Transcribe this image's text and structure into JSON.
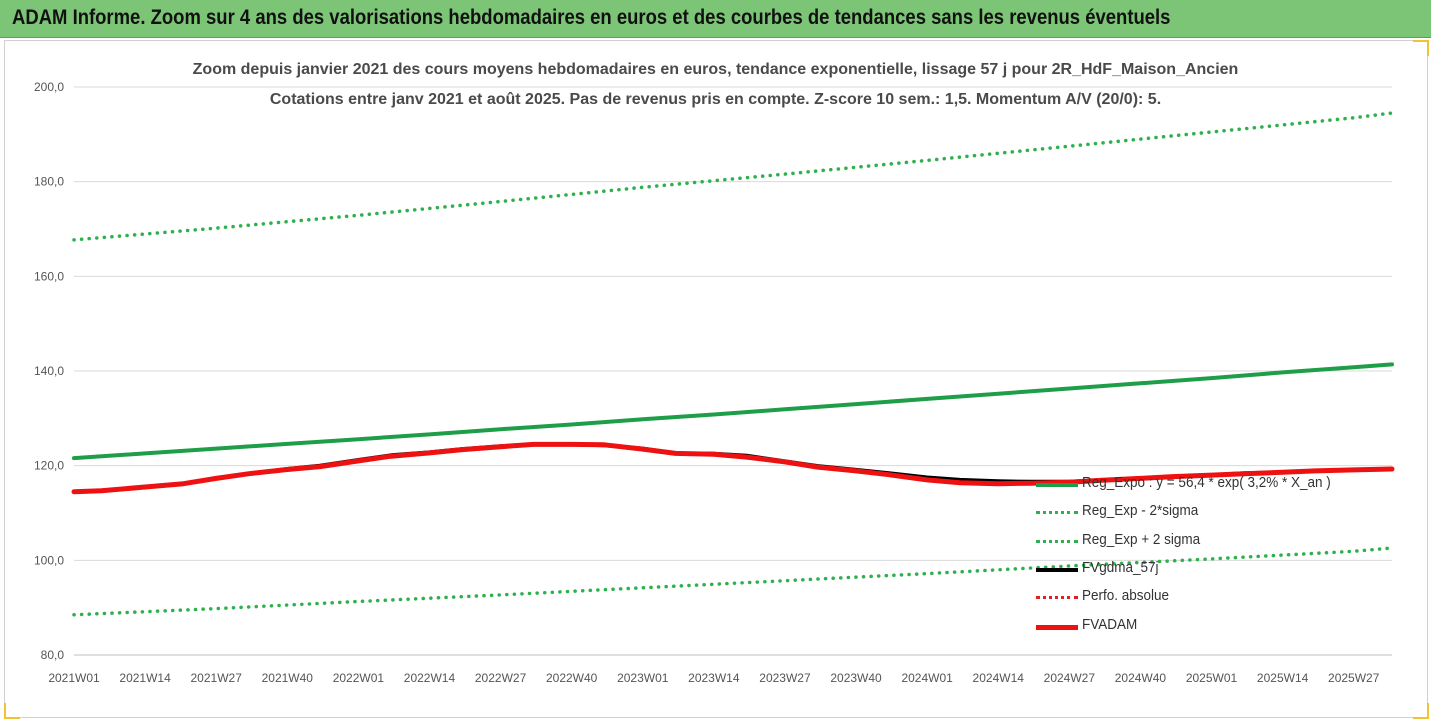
{
  "banner": {
    "title": "ADAM Informe. Zoom sur 4 ans des valorisations hebdomadaires en euros et des courbes de tendances sans les revenus éventuels"
  },
  "chart_data": {
    "type": "line",
    "title": "Zoom depuis janvier 2021 des cours moyens hebdomadaires en euros, tendance exponentielle, lissage 57 j pour 2R_HdF_Maison_Ancien",
    "subtitle": "Cotations entre janv 2021 et août 2025.  Pas de revenus pris en compte. Z-score 10 sem.: 1,5. Momentum A/V (20/0): 5.",
    "xlabel": "",
    "ylabel": "",
    "ylim": [
      80,
      200
    ],
    "yticks": [
      "80,0",
      "100,0",
      "120,0",
      "140,0",
      "160,0",
      "180,0",
      "200,0"
    ],
    "ytick_values": [
      80,
      100,
      120,
      140,
      160,
      180,
      200
    ],
    "xticks": [
      "2021W01",
      "2021W14",
      "2021W27",
      "2021W40",
      "2022W01",
      "2022W14",
      "2022W27",
      "2022W40",
      "2023W01",
      "2023W14",
      "2023W27",
      "2023W40",
      "2024W01",
      "2024W14",
      "2024W27",
      "2024W40",
      "2025W01",
      "2025W14",
      "2025W27"
    ],
    "grid": "horizontal",
    "legend_position": "bottom-right",
    "series": [
      {
        "name": "Reg_Expo : y = 56,4 * exp( 3,2% *  X_an )",
        "color": "#1e9e48",
        "style": "solid",
        "x": [
          0,
          13,
          26,
          39,
          52,
          65,
          78,
          91,
          104,
          117,
          130,
          143,
          156,
          169,
          182,
          195,
          208,
          221,
          234,
          241
        ],
        "values": [
          121.6,
          122.6,
          123.6,
          124.6,
          125.6,
          126.6,
          127.7,
          128.7,
          129.8,
          130.8,
          131.9,
          133.0,
          134.1,
          135.2,
          136.3,
          137.4,
          138.5,
          139.7,
          140.8,
          141.4
        ]
      },
      {
        "name": "Reg_Exp - 2*sigma",
        "color": "#2eb04e",
        "style": "dotted",
        "x": [
          0,
          26,
          52,
          78,
          104,
          130,
          156,
          182,
          208,
          234,
          241
        ],
        "values": [
          88.5,
          89.8,
          91.3,
          92.7,
          94.2,
          95.7,
          97.2,
          98.8,
          100.3,
          101.9,
          102.6
        ]
      },
      {
        "name": "Reg_Exp + 2 sigma",
        "color": "#2eb04e",
        "style": "dotted",
        "x": [
          0,
          26,
          52,
          78,
          104,
          130,
          156,
          182,
          208,
          234,
          241
        ],
        "values": [
          167.7,
          170.2,
          172.9,
          175.8,
          178.8,
          181.6,
          184.5,
          187.5,
          190.5,
          193.5,
          194.5
        ]
      },
      {
        "name": "FVgdma_57j",
        "color": "#000000",
        "style": "solid",
        "x": [
          0,
          5,
          13,
          20,
          26,
          32,
          39,
          45,
          52,
          58,
          65,
          71,
          78,
          84,
          91,
          97,
          104,
          110,
          117,
          123,
          130,
          136,
          143,
          149,
          156,
          162,
          169,
          175,
          182,
          188,
          195,
          201,
          208,
          214,
          221,
          227,
          234,
          241
        ],
        "values": [
          114.5,
          114.7,
          115.5,
          116.2,
          117.3,
          118.3,
          119.3,
          120.0,
          121.2,
          122.2,
          122.8,
          123.5,
          124.1,
          124.5,
          124.5,
          124.3,
          123.6,
          122.6,
          122.5,
          122.1,
          120.9,
          119.9,
          119.1,
          118.4,
          117.5,
          117.0,
          116.7,
          116.6,
          116.6,
          116.9,
          117.3,
          117.7,
          118.0,
          118.4,
          118.6,
          118.9,
          119.1,
          119.3
        ]
      },
      {
        "name": "Perfo. absolue",
        "color": "#e02020",
        "style": "dotted",
        "x": [],
        "values": []
      },
      {
        "name": "FVADAM",
        "color": "#ee1111",
        "style": "solid-thick",
        "x": [
          0,
          5,
          13,
          20,
          26,
          32,
          39,
          45,
          52,
          58,
          65,
          71,
          78,
          84,
          91,
          97,
          104,
          110,
          117,
          123,
          130,
          136,
          143,
          149,
          156,
          162,
          169,
          175,
          182,
          188,
          195,
          201,
          208,
          214,
          221,
          227,
          234,
          241
        ],
        "values": [
          114.5,
          114.7,
          115.5,
          116.2,
          117.3,
          118.3,
          119.2,
          119.8,
          121.0,
          122.0,
          122.7,
          123.4,
          124.0,
          124.5,
          124.5,
          124.4,
          123.5,
          122.6,
          122.4,
          121.8,
          120.8,
          119.7,
          118.9,
          118.1,
          117.0,
          116.4,
          116.2,
          116.3,
          116.5,
          116.9,
          117.3,
          117.7,
          118.0,
          118.3,
          118.6,
          118.9,
          119.1,
          119.3
        ]
      }
    ]
  }
}
